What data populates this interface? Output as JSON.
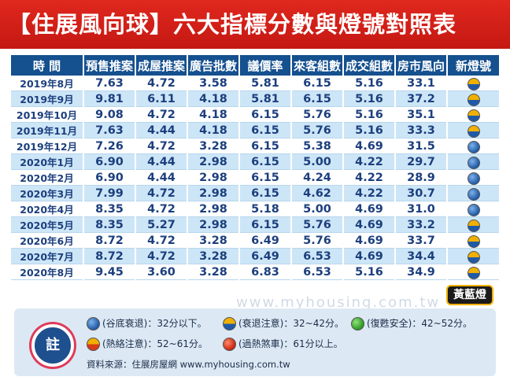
{
  "title": "【住展風向球】六大指標分數與燈號對照表",
  "headers": [
    "時 間",
    "預售推案",
    "成屋推案",
    "廣告批數",
    "議價率",
    "來客組數",
    "成交組數",
    "房市風向",
    "新燈號"
  ],
  "rows": [
    {
      "time": "2019年8月",
      "v1": "7.63",
      "v2": "4.72",
      "v3": "3.58",
      "v4": "5.81",
      "v5": "6.15",
      "v6": "5.16",
      "v7": "33.1",
      "light": "yellow-blue"
    },
    {
      "time": "2019年9月",
      "v1": "9.81",
      "v2": "6.11",
      "v3": "4.18",
      "v4": "5.81",
      "v5": "6.15",
      "v6": "5.16",
      "v7": "37.2",
      "light": "yellow-blue"
    },
    {
      "time": "2019年10月",
      "v1": "9.08",
      "v2": "4.72",
      "v3": "4.18",
      "v4": "6.15",
      "v5": "5.76",
      "v6": "5.16",
      "v7": "35.1",
      "light": "yellow-blue"
    },
    {
      "time": "2019年11月",
      "v1": "7.63",
      "v2": "4.44",
      "v3": "4.18",
      "v4": "6.15",
      "v5": "5.76",
      "v6": "5.16",
      "v7": "33.3",
      "light": "yellow-blue"
    },
    {
      "time": "2019年12月",
      "v1": "7.26",
      "v2": "4.72",
      "v3": "3.28",
      "v4": "6.15",
      "v5": "5.38",
      "v6": "4.69",
      "v7": "31.5",
      "light": "blue"
    },
    {
      "time": "2020年1月",
      "v1": "6.90",
      "v2": "4.44",
      "v3": "2.98",
      "v4": "6.15",
      "v5": "5.00",
      "v6": "4.22",
      "v7": "29.7",
      "light": "blue"
    },
    {
      "time": "2020年2月",
      "v1": "6.90",
      "v2": "4.44",
      "v3": "2.98",
      "v4": "6.15",
      "v5": "4.24",
      "v6": "4.22",
      "v7": "28.9",
      "light": "blue"
    },
    {
      "time": "2020年3月",
      "v1": "7.99",
      "v2": "4.72",
      "v3": "2.98",
      "v4": "6.15",
      "v5": "4.62",
      "v6": "4.22",
      "v7": "30.7",
      "light": "blue"
    },
    {
      "time": "2020年4月",
      "v1": "8.35",
      "v2": "4.72",
      "v3": "2.98",
      "v4": "5.18",
      "v5": "5.00",
      "v6": "4.69",
      "v7": "31.0",
      "light": "blue"
    },
    {
      "time": "2020年5月",
      "v1": "8.35",
      "v2": "5.27",
      "v3": "2.98",
      "v4": "6.15",
      "v5": "5.76",
      "v6": "4.69",
      "v7": "33.2",
      "light": "yellow-blue"
    },
    {
      "time": "2020年6月",
      "v1": "8.72",
      "v2": "4.72",
      "v3": "3.28",
      "v4": "6.49",
      "v5": "5.76",
      "v6": "4.69",
      "v7": "33.7",
      "light": "yellow-blue"
    },
    {
      "time": "2020年7月",
      "v1": "8.72",
      "v2": "4.72",
      "v3": "3.28",
      "v4": "6.49",
      "v5": "6.53",
      "v6": "4.69",
      "v7": "34.4",
      "light": "yellow-blue"
    },
    {
      "time": "2020年8月",
      "v1": "9.45",
      "v2": "3.60",
      "v3": "3.28",
      "v4": "6.83",
      "v5": "6.53",
      "v6": "5.16",
      "v7": "34.9",
      "light": "yellow-blue"
    }
  ],
  "current_light_label": "黃藍燈",
  "watermark": "www.myhousing.com.tw",
  "legend": {
    "badge": "註",
    "items": [
      {
        "light": "blue",
        "text": "(谷底衰退)：32分以下。"
      },
      {
        "light": "yellow-blue",
        "text": "(衰退注意)：32~42分。"
      },
      {
        "light": "green",
        "text": "(復甦安全)：42~52分。"
      },
      {
        "light": "yellow-red",
        "text": "(熱絡注意)：52~61分。"
      },
      {
        "light": "red",
        "text": "(過熱煞車)：61分以上。"
      }
    ],
    "source": "資料來源：住展房屋網 www.myhousing.com.tw"
  }
}
